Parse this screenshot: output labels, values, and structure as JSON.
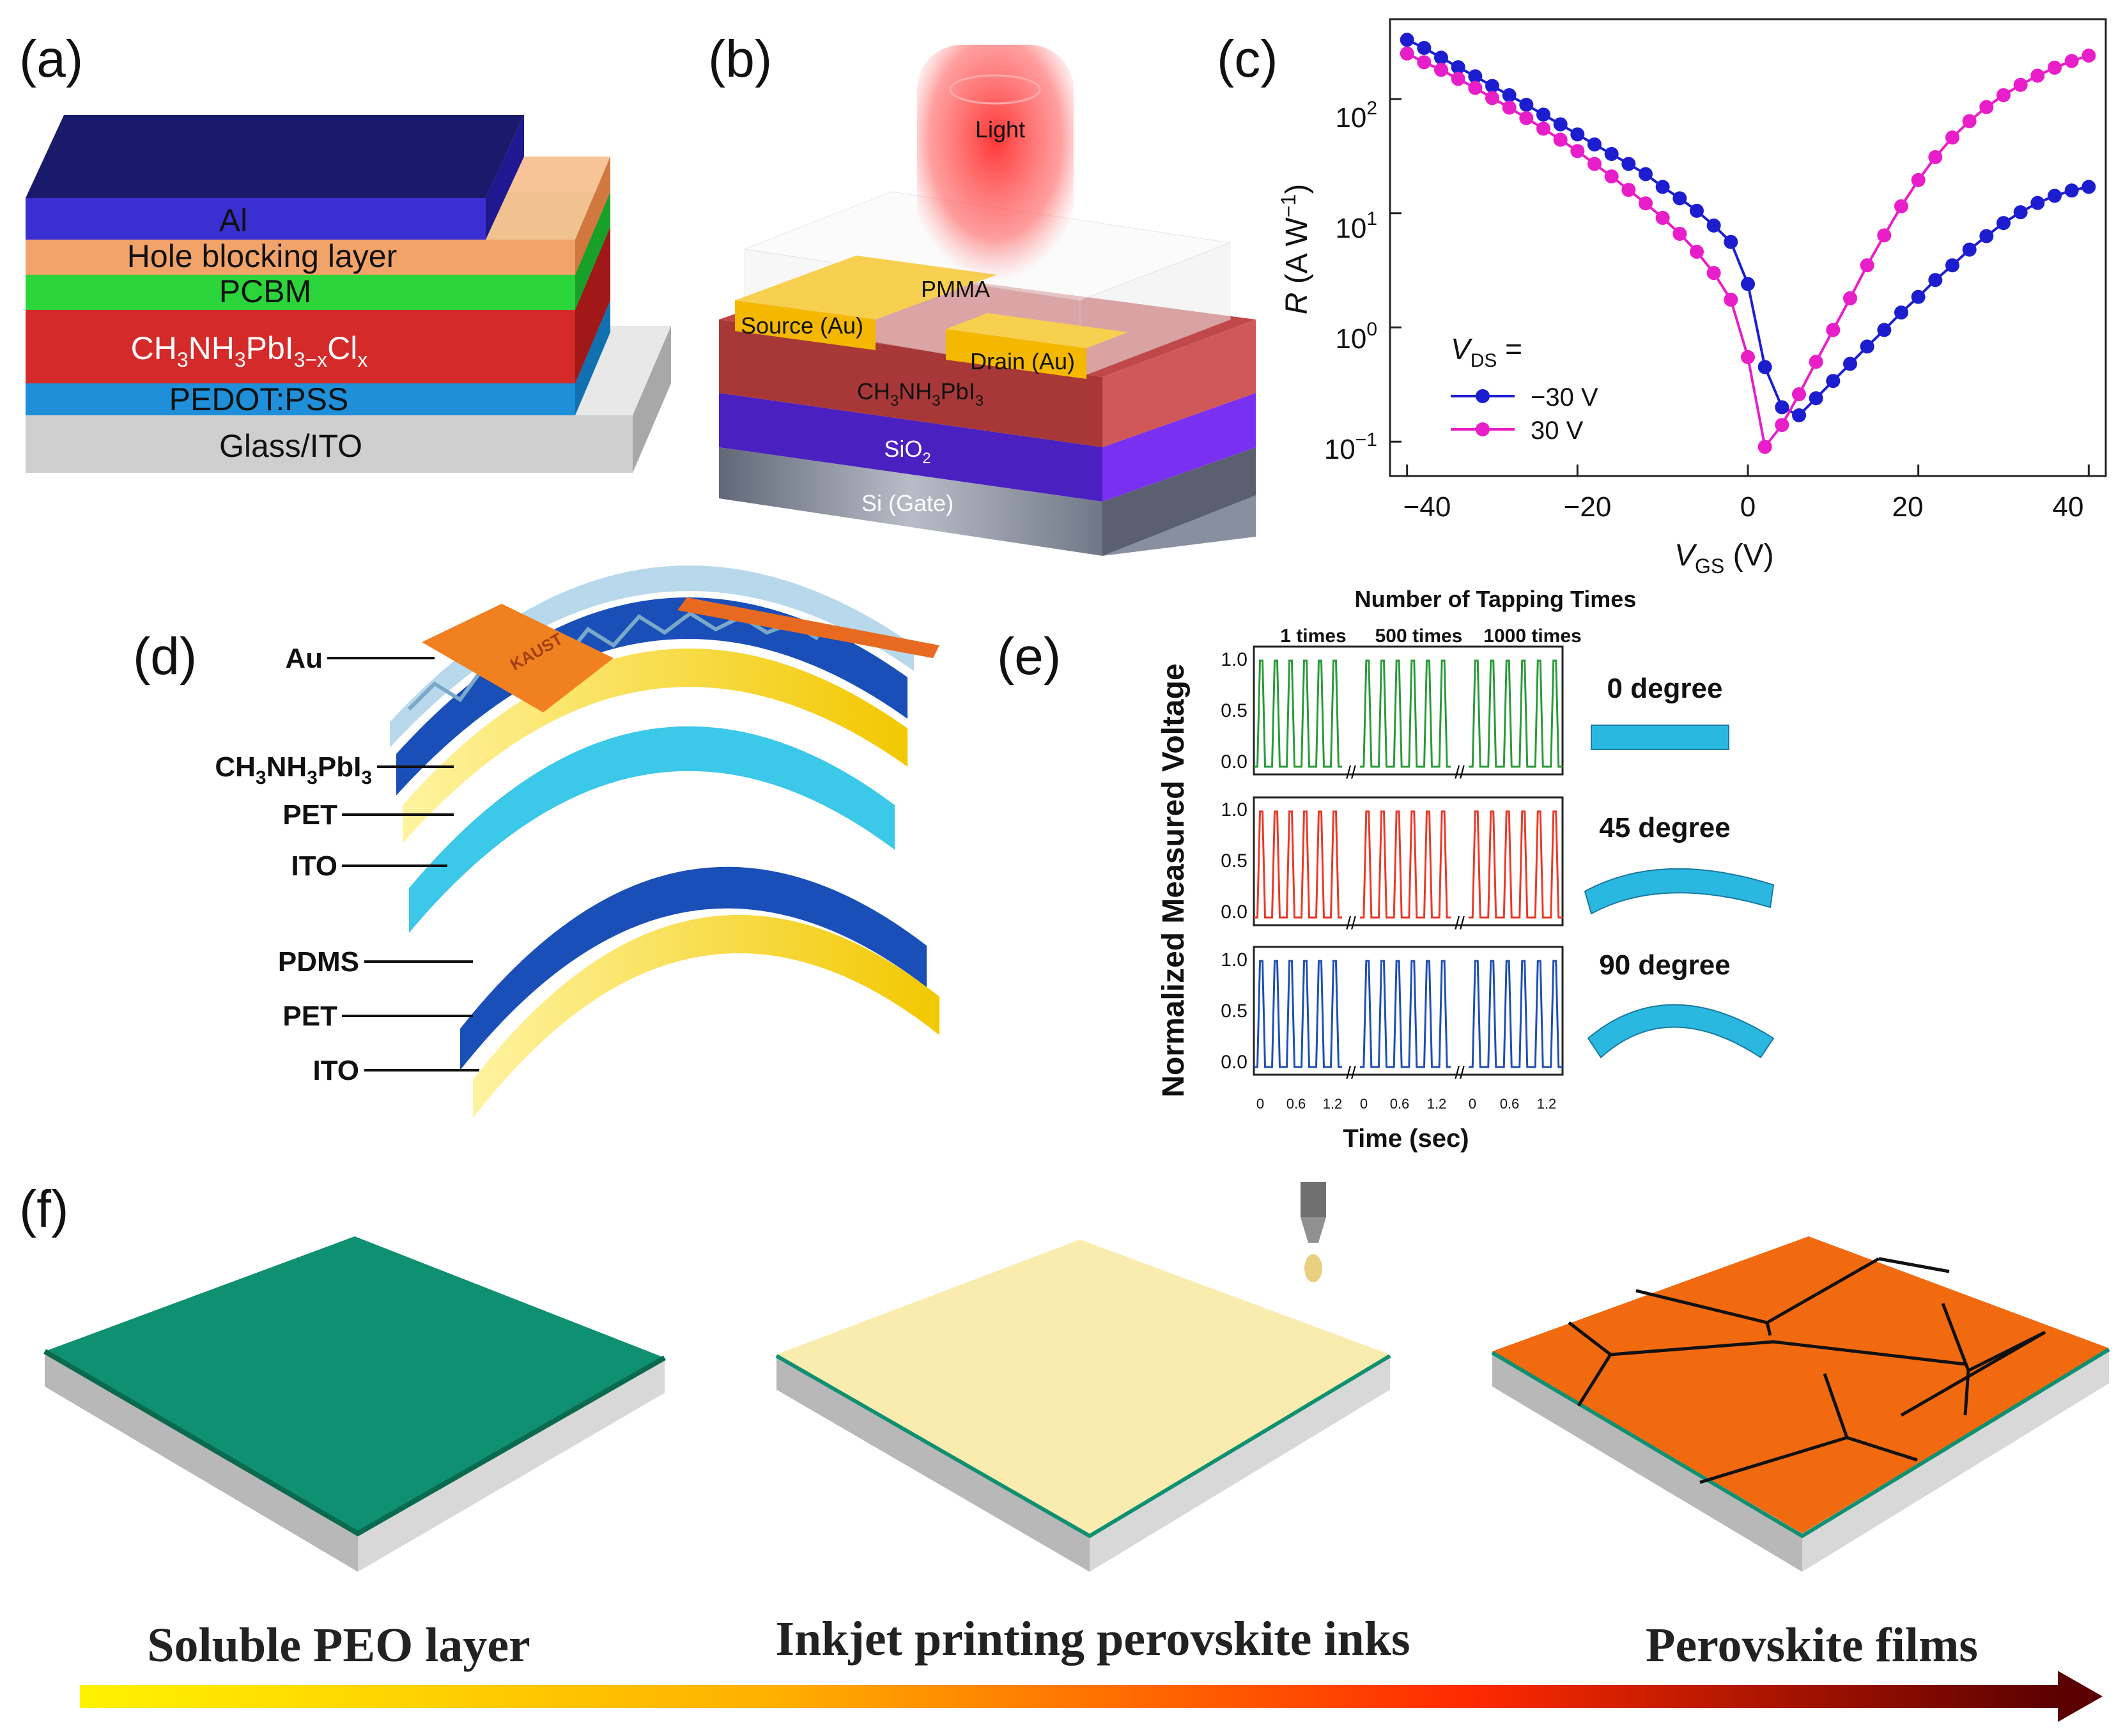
{
  "panel_labels": {
    "a": "(a)",
    "b": "(b)",
    "c": "(c)",
    "d": "(d)",
    "e": "(e)",
    "f": "(f)"
  },
  "panel_a": {
    "layers": {
      "al": "Al",
      "hbl": "Hole blocking layer",
      "pcbm": "PCBM",
      "perov_main": "CH",
      "perov_s1": "3",
      "perov_m2": "NH",
      "perov_s2": "3",
      "perov_m3": "PbI",
      "perov_s3": "3−x",
      "perov_m4": "Cl",
      "perov_s4": "x",
      "pedot": "PEDOT:PSS",
      "glass": "Glass/ITO"
    },
    "colors": {
      "al": "#3a2fd0",
      "hbl": "#f2a36a",
      "pcbm": "#2bd43a",
      "perov": "#d42a2a",
      "pedot": "#1e8fd8",
      "glass": "#d0d0d0"
    }
  },
  "panel_b": {
    "light": "Light",
    "pmma": "PMMA",
    "source": "Source (Au)",
    "drain": "Drain (Au)",
    "ch_m1": "CH",
    "ch_s1": "3",
    "ch_m2": "NH",
    "ch_s2": "3",
    "ch_m3": "PbI",
    "ch_s3": "3",
    "sio_m": "SiO",
    "sio_s": "2",
    "si": "Si (Gate)"
  },
  "panel_c": {
    "ylabel_main": "R",
    "ylabel_unit": " (A W",
    "ylabel_sup": "−1",
    "ylabel_close": ")",
    "xlabel_main": "V",
    "xlabel_sub": "GS",
    "xlabel_unit": " (V)",
    "legend_title_main": "V",
    "legend_title_sub": "DS",
    "legend_title_eq": " =",
    "legend": [
      "−30 V",
      "30 V"
    ],
    "xticks": [
      "−40",
      "−20",
      "0",
      "20",
      "40"
    ],
    "yticks_base": "10",
    "yticks_exp": [
      "−1",
      "0",
      "1",
      "2"
    ]
  },
  "panel_d": {
    "labels": [
      "Au",
      "CH3NH3PbI3",
      "PET",
      "ITO",
      "PDMS",
      "PET",
      "ITO"
    ],
    "ch_m1": "CH",
    "ch_s1": "3",
    "ch_m2": "NH",
    "ch_s2": "3",
    "ch_m3": "PbI",
    "ch_s3": "3",
    "logo": "KAUST"
  },
  "panel_e": {
    "title": "Number of Tapping Times",
    "groups": [
      "1 times",
      "500 times",
      "1000 times"
    ],
    "ylabel": "Normalized Measured Voltage",
    "xlabel": "Time (sec)",
    "yticks": [
      "1.0",
      "0.5",
      "0.0"
    ],
    "xticks": [
      "0",
      "0.6",
      "1.2"
    ],
    "angles": [
      "0 degree",
      "45 degree",
      "90 degree"
    ],
    "colors": [
      "#2a9a3a",
      "#e83a2a",
      "#1f4fb0"
    ]
  },
  "panel_f": {
    "captions": [
      "Soluble PEO layer",
      "Inkjet printing perovskite inks",
      "Perovskite films"
    ],
    "colors": {
      "peo": "#0f9070",
      "ink": "#f9ecae",
      "film": "#f26a10",
      "base": "#c4c4c4"
    }
  },
  "chart_data": {
    "type": "scatter",
    "title": "",
    "xlabel": "VGS (V)",
    "ylabel": "R (A W-1)",
    "xlim": [
      -42,
      42
    ],
    "ylim": [
      0.05,
      500
    ],
    "yscale": "log",
    "legend_position": "bottom-left",
    "x": [
      -40,
      -38,
      -36,
      -34,
      -32,
      -30,
      -28,
      -26,
      -24,
      -22,
      -20,
      -18,
      -16,
      -14,
      -12,
      -10,
      -8,
      -6,
      -4,
      -2,
      0,
      2,
      4,
      6,
      8,
      10,
      12,
      14,
      16,
      18,
      20,
      22,
      24,
      26,
      28,
      30,
      32,
      34,
      36,
      38,
      40
    ],
    "series": [
      {
        "name": "−30 V",
        "color": "#1d1dd0",
        "values": [
          330,
          280,
          230,
          190,
          158,
          130,
          108,
          89,
          73,
          60,
          49,
          40,
          33,
          27,
          22,
          17,
          13.5,
          10.5,
          7.8,
          5.6,
          2.4,
          0.45,
          0.2,
          0.17,
          0.24,
          0.34,
          0.48,
          0.68,
          0.95,
          1.35,
          1.85,
          2.6,
          3.5,
          4.8,
          6.3,
          8.2,
          10.2,
          12.3,
          14.2,
          15.8,
          17.0
        ]
      },
      {
        "name": "30 V",
        "color": "#e81ec8",
        "values": [
          250,
          210,
          180,
          150,
          125,
          102,
          84,
          68,
          55,
          44,
          35,
          27,
          21,
          16,
          12.2,
          9.1,
          6.6,
          4.6,
          3.0,
          1.75,
          0.55,
          0.09,
          0.14,
          0.26,
          0.5,
          0.95,
          1.8,
          3.5,
          6.4,
          11.5,
          19.5,
          31,
          46,
          64,
          85,
          108,
          133,
          160,
          188,
          215,
          240
        ]
      }
    ]
  }
}
